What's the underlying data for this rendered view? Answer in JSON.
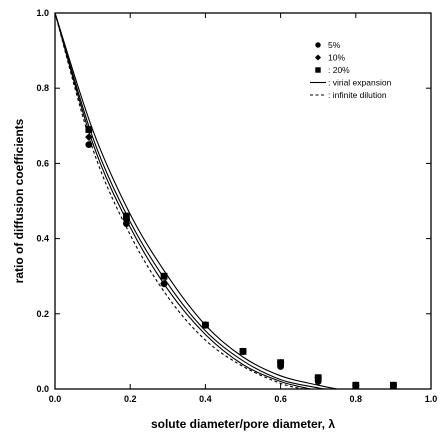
{
  "chart_data": {
    "type": "scatter",
    "xlabel": "solute diameter/pore diameter, λ",
    "ylabel": "ratio of diffusion coefficients",
    "xlim": [
      0,
      1
    ],
    "ylim": [
      0,
      1
    ],
    "x_ticks": [
      "0.0",
      "0.2",
      "0.4",
      "0.6",
      "0.8",
      "1.0"
    ],
    "y_ticks": [
      "0.0",
      "0.2",
      "0.4",
      "0.6",
      "0.8",
      "1.0"
    ],
    "grid": false,
    "legend_position": "top-right",
    "series": [
      {
        "name": "5%",
        "marker": "circle",
        "points": [
          [
            0.09,
            0.65
          ],
          [
            0.19,
            0.44
          ],
          [
            0.29,
            0.28
          ],
          [
            0.4,
            0.17
          ],
          [
            0.5,
            0.1
          ],
          [
            0.6,
            0.06
          ],
          [
            0.7,
            0.02
          ],
          [
            0.8,
            0.01
          ],
          [
            0.9,
            0.01
          ]
        ]
      },
      {
        "name": "10%",
        "marker": "diamond",
        "points": [
          [
            0.09,
            0.67
          ],
          [
            0.19,
            0.45
          ],
          [
            0.29,
            0.28
          ],
          [
            0.4,
            0.17
          ],
          [
            0.5,
            0.1
          ],
          [
            0.6,
            0.07
          ],
          [
            0.7,
            0.03
          ],
          [
            0.8,
            0.01
          ],
          [
            0.9,
            0.01
          ]
        ]
      },
      {
        "name": ": 20%",
        "marker": "square",
        "points": [
          [
            0.09,
            0.69
          ],
          [
            0.19,
            0.46
          ],
          [
            0.29,
            0.3
          ],
          [
            0.4,
            0.17
          ],
          [
            0.5,
            0.1
          ],
          [
            0.6,
            0.07
          ],
          [
            0.7,
            0.03
          ],
          [
            0.8,
            0.01
          ],
          [
            0.9,
            0.01
          ]
        ]
      },
      {
        "name": ": virial expansion",
        "style": "solid",
        "curves": [
          [
            [
              0,
              1
            ],
            [
              0.1,
              0.69
            ],
            [
              0.2,
              0.465
            ],
            [
              0.3,
              0.3
            ],
            [
              0.4,
              0.17
            ],
            [
              0.5,
              0.085
            ],
            [
              0.6,
              0.035
            ],
            [
              0.7,
              0.01
            ],
            [
              0.75,
              0
            ]
          ],
          [
            [
              0,
              1
            ],
            [
              0.1,
              0.67
            ],
            [
              0.2,
              0.445
            ],
            [
              0.3,
              0.28
            ],
            [
              0.4,
              0.155
            ],
            [
              0.5,
              0.075
            ],
            [
              0.6,
              0.025
            ],
            [
              0.7,
              0.003
            ],
            [
              0.72,
              0
            ]
          ],
          [
            [
              0,
              1
            ],
            [
              0.1,
              0.655
            ],
            [
              0.2,
              0.43
            ],
            [
              0.3,
              0.265
            ],
            [
              0.4,
              0.145
            ],
            [
              0.5,
              0.065
            ],
            [
              0.6,
              0.02
            ],
            [
              0.68,
              0
            ]
          ]
        ]
      },
      {
        "name": ": infinite dilution",
        "style": "dashed",
        "points": [
          [
            0,
            1
          ],
          [
            0.1,
            0.64
          ],
          [
            0.2,
            0.41
          ],
          [
            0.3,
            0.245
          ],
          [
            0.4,
            0.13
          ],
          [
            0.5,
            0.06
          ],
          [
            0.6,
            0.015
          ],
          [
            0.66,
            0
          ]
        ]
      }
    ]
  }
}
